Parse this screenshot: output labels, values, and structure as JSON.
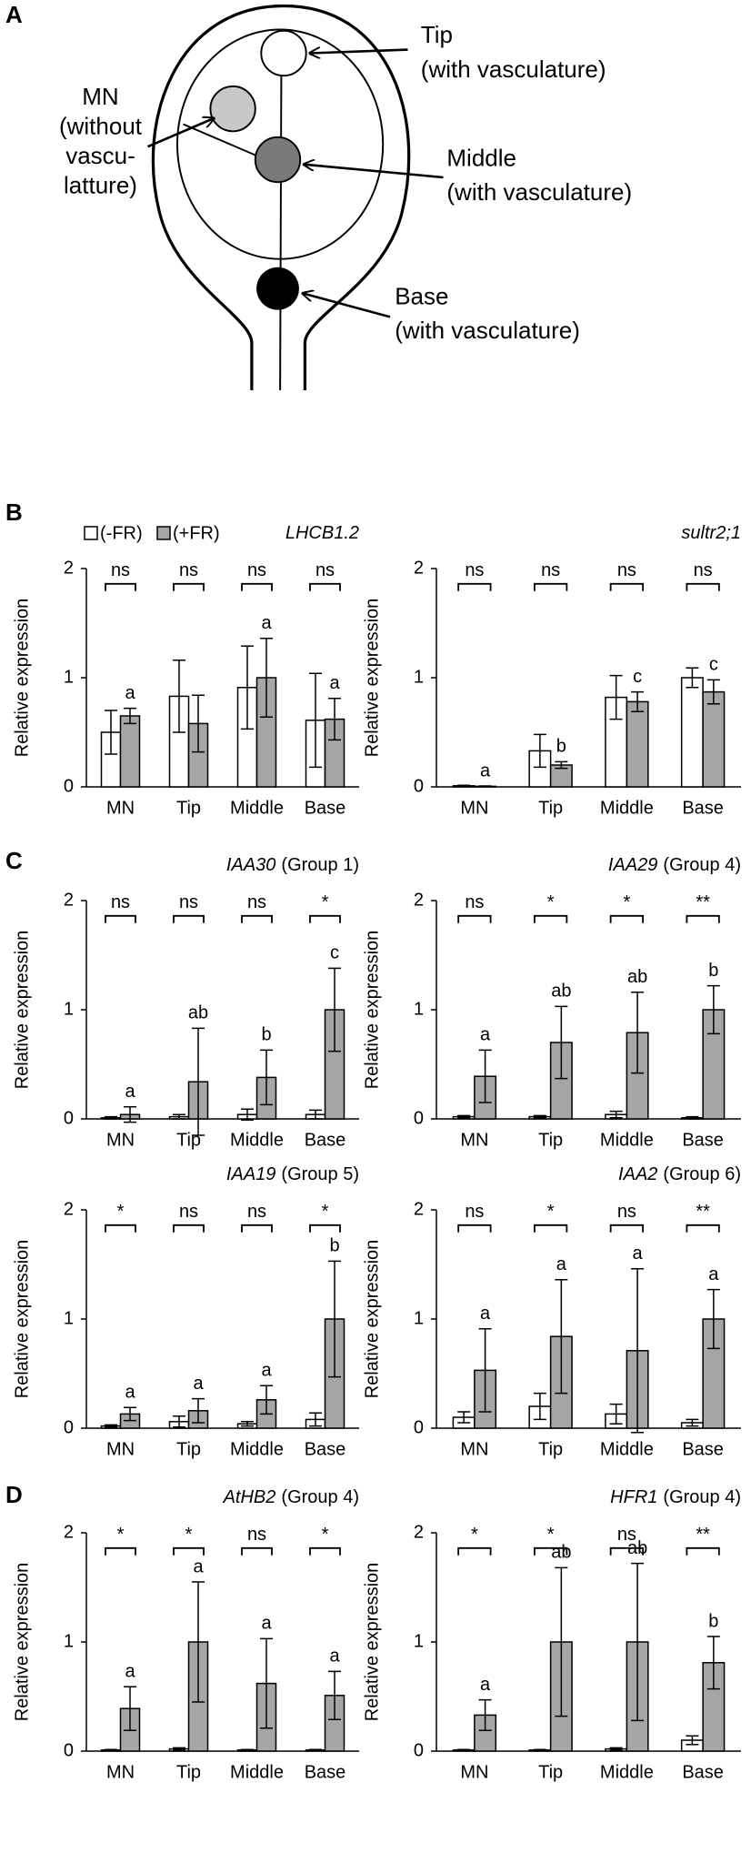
{
  "panels": [
    "A",
    "B",
    "C",
    "D"
  ],
  "diagram": {
    "tip": [
      "Tip",
      "(with vasculature)"
    ],
    "mn": [
      "MN",
      "(without",
      "vascu-",
      "latture)"
    ],
    "middle": [
      "Middle",
      "(with vasculature)"
    ],
    "base": [
      "Base",
      "(with vasculature)"
    ]
  },
  "chart_data": [
    {
      "type": "bar",
      "title": "LHCB1.2",
      "y_label": "Relative expression",
      "legend": "top-left",
      "categories": [
        "MN",
        "Tip",
        "Middle",
        "Base"
      ],
      "ylim": [
        0,
        2
      ],
      "yticks": [
        0,
        1,
        2
      ],
      "series": [
        {
          "name": "(-FR)",
          "color": "#ffffff",
          "values": [
            0.5,
            0.83,
            0.91,
            0.61
          ],
          "errors": [
            0.2,
            0.33,
            0.38,
            0.43
          ]
        },
        {
          "name": "(+FR)",
          "color": "#a6a6a6",
          "values": [
            0.65,
            0.58,
            1.0,
            0.62
          ],
          "errors": [
            0.07,
            0.26,
            0.36,
            0.19
          ]
        }
      ],
      "significance": [
        "ns",
        "ns",
        "ns",
        "ns"
      ],
      "letters": [
        "a",
        null,
        "a",
        "a"
      ]
    },
    {
      "type": "bar",
      "title": "sultr2;1",
      "y_label": "Relative expression",
      "categories": [
        "MN",
        "Tip",
        "Middle",
        "Base"
      ],
      "ylim": [
        0,
        2
      ],
      "yticks": [
        0,
        1,
        2
      ],
      "series": [
        {
          "color": "#ffffff",
          "values": [
            0.01,
            0.33,
            0.82,
            1.0
          ],
          "errors": [
            0.005,
            0.15,
            0.2,
            0.09
          ]
        },
        {
          "color": "#a6a6a6",
          "values": [
            0.005,
            0.2,
            0.78,
            0.87
          ],
          "errors": [
            0.003,
            0.03,
            0.09,
            0.11
          ]
        }
      ],
      "significance": [
        "ns",
        "ns",
        "ns",
        "ns"
      ],
      "letters": [
        "a",
        "b",
        "c",
        "c"
      ]
    },
    {
      "type": "bar",
      "title": "IAA30",
      "group": "(Group 1)",
      "y_label": "Relative expression",
      "categories": [
        "MN",
        "Tip",
        "Middle",
        "Base"
      ],
      "ylim": [
        0,
        2
      ],
      "yticks": [
        0,
        1,
        2
      ],
      "series": [
        {
          "color": "#ffffff",
          "values": [
            0.01,
            0.02,
            0.04,
            0.04
          ],
          "errors": [
            0.01,
            0.02,
            0.05,
            0.04
          ]
        },
        {
          "color": "#a6a6a6",
          "values": [
            0.04,
            0.34,
            0.38,
            1.0
          ],
          "errors": [
            0.07,
            0.49,
            0.25,
            0.38
          ]
        }
      ],
      "significance": [
        "ns",
        "ns",
        "ns",
        "*"
      ],
      "letters": [
        "a",
        "ab",
        "b",
        "c"
      ]
    },
    {
      "type": "bar",
      "title": "IAA29",
      "group": "(Group 4)",
      "y_label": "Relative expression",
      "categories": [
        "MN",
        "Tip",
        "Middle",
        "Base"
      ],
      "ylim": [
        0,
        2
      ],
      "yticks": [
        0,
        1,
        2
      ],
      "series": [
        {
          "color": "#ffffff",
          "values": [
            0.02,
            0.02,
            0.04,
            0.01
          ],
          "errors": [
            0.01,
            0.01,
            0.03,
            0.01
          ]
        },
        {
          "color": "#a6a6a6",
          "values": [
            0.39,
            0.7,
            0.79,
            1.0
          ],
          "errors": [
            0.24,
            0.33,
            0.37,
            0.22
          ]
        }
      ],
      "significance": [
        "ns",
        "*",
        "*",
        "**"
      ],
      "letters": [
        "a",
        "ab",
        "ab",
        "b"
      ]
    },
    {
      "type": "bar",
      "title": "IAA19",
      "group": "(Group 5)",
      "y_label": "Relative expression",
      "categories": [
        "MN",
        "Tip",
        "Middle",
        "Base"
      ],
      "ylim": [
        0,
        2
      ],
      "yticks": [
        0,
        1,
        2
      ],
      "series": [
        {
          "color": "#ffffff",
          "values": [
            0.02,
            0.06,
            0.04,
            0.08
          ],
          "errors": [
            0.01,
            0.05,
            0.02,
            0.06
          ]
        },
        {
          "color": "#a6a6a6",
          "values": [
            0.13,
            0.16,
            0.26,
            1.0
          ],
          "errors": [
            0.06,
            0.11,
            0.13,
            0.53
          ]
        }
      ],
      "significance": [
        "*",
        "ns",
        "ns",
        "*"
      ],
      "letters": [
        "a",
        "a",
        "a",
        "b"
      ]
    },
    {
      "type": "bar",
      "title": "IAA2",
      "group": "(Group 6)",
      "y_label": "Relative expression",
      "categories": [
        "MN",
        "Tip",
        "Middle",
        "Base"
      ],
      "ylim": [
        0,
        2
      ],
      "yticks": [
        0,
        1,
        2
      ],
      "series": [
        {
          "color": "#ffffff",
          "values": [
            0.1,
            0.2,
            0.13,
            0.05
          ],
          "errors": [
            0.05,
            0.12,
            0.09,
            0.03
          ]
        },
        {
          "color": "#a6a6a6",
          "values": [
            0.53,
            0.84,
            0.71,
            1.0
          ],
          "errors": [
            0.38,
            0.52,
            0.75,
            0.27
          ]
        }
      ],
      "significance": [
        "ns",
        "*",
        "ns",
        "**"
      ],
      "letters": [
        "a",
        "a",
        "a",
        "a"
      ]
    },
    {
      "type": "bar",
      "title": "AtHB2",
      "group": "(Group 4)",
      "y_label": "Relative expression",
      "categories": [
        "MN",
        "Tip",
        "Middle",
        "Base"
      ],
      "ylim": [
        0,
        2
      ],
      "yticks": [
        0,
        1,
        2
      ],
      "series": [
        {
          "color": "#ffffff",
          "values": [
            0.01,
            0.02,
            0.01,
            0.01
          ],
          "errors": [
            0.005,
            0.01,
            0.005,
            0.005
          ]
        },
        {
          "color": "#a6a6a6",
          "values": [
            0.39,
            1.0,
            0.62,
            0.51
          ],
          "errors": [
            0.2,
            0.55,
            0.41,
            0.22
          ]
        }
      ],
      "significance": [
        "*",
        "*",
        "ns",
        "*"
      ],
      "letters": [
        "a",
        "a",
        "a",
        "a"
      ]
    },
    {
      "type": "bar",
      "title": "HFR1",
      "group": "(Group 4)",
      "y_label": "Relative expression",
      "categories": [
        "MN",
        "Tip",
        "Middle",
        "Base"
      ],
      "ylim": [
        0,
        2
      ],
      "yticks": [
        0,
        1,
        2
      ],
      "series": [
        {
          "color": "#ffffff",
          "values": [
            0.01,
            0.01,
            0.02,
            0.1
          ],
          "errors": [
            0.005,
            0.005,
            0.01,
            0.04
          ]
        },
        {
          "color": "#a6a6a6",
          "values": [
            0.33,
            1.0,
            1.0,
            0.81
          ],
          "errors": [
            0.14,
            0.68,
            0.72,
            0.24
          ]
        }
      ],
      "significance": [
        "*",
        "*",
        "ns",
        "**"
      ],
      "letters": [
        "a",
        "ab",
        "ab",
        "b"
      ]
    }
  ]
}
